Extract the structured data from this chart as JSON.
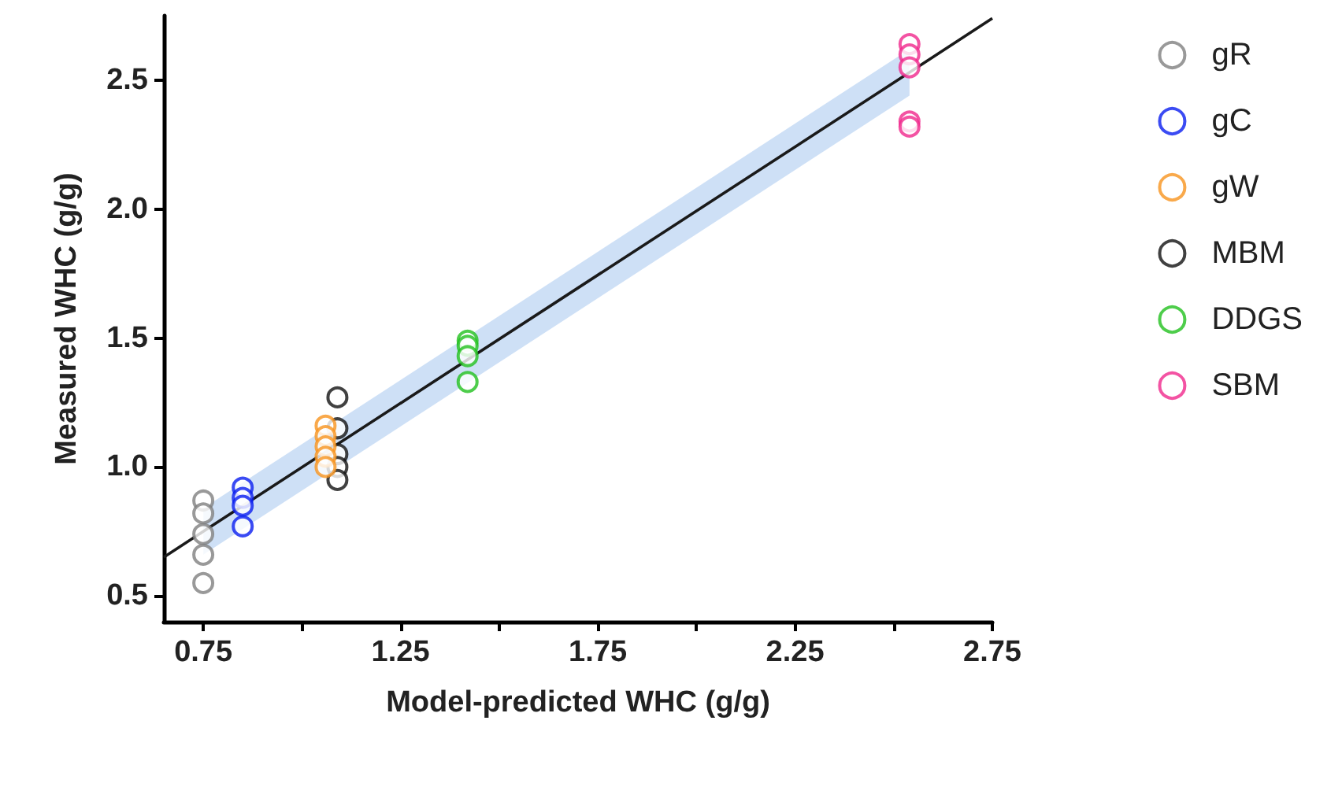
{
  "chart_data": {
    "type": "scatter",
    "xlabel": "Model-predicted WHC (g/g)",
    "ylabel": "Measured WHC (g/g)",
    "marker": "circle",
    "legend": "right",
    "grid": false,
    "xlim": [
      0.65,
      2.75
    ],
    "xticks": [
      0.75,
      {
        "value": 1.0,
        "label": null
      },
      1.25,
      {
        "value": 1.5,
        "label": null
      },
      1.75,
      {
        "value": 2.0,
        "label": null
      },
      2.25,
      {
        "value": 2.5,
        "label": null
      },
      2.75
    ],
    "ylim": [
      0.4,
      2.75
    ],
    "yticks": [
      0.5,
      {
        "value": 1,
        "label": "1.0"
      },
      1.5,
      {
        "value": 2,
        "label": "2.0"
      },
      2.5
    ],
    "series": [
      {
        "name": "gR",
        "color": "#7f7f7f",
        "x": [
          0.75,
          0.75,
          0.75,
          0.75,
          0.75
        ],
        "values": [
          0.87,
          0.82,
          0.74,
          0.66,
          0.55
        ]
      },
      {
        "name": "gC",
        "color": "#0a1ef0",
        "x": [
          0.85,
          0.85,
          0.85,
          0.85
        ],
        "values": [
          0.92,
          0.88,
          0.85,
          0.77
        ]
      },
      {
        "name": "gW",
        "color": "#f7931e",
        "x": [
          1.06,
          1.06,
          1.06,
          1.06,
          1.06
        ],
        "values": [
          1.16,
          1.12,
          1.08,
          1.04,
          1.0
        ]
      },
      {
        "name": "MBM",
        "color": "#111111",
        "x": [
          1.09,
          1.09,
          1.09,
          1.09,
          1.09
        ],
        "values": [
          1.27,
          1.15,
          1.05,
          1.0,
          0.95
        ]
      },
      {
        "name": "DDGS",
        "color": "#22c01e",
        "x": [
          1.42,
          1.42,
          1.42,
          1.42
        ],
        "values": [
          1.49,
          1.47,
          1.43,
          1.33
        ]
      },
      {
        "name": "SBM",
        "color": "#f0288c",
        "x": [
          2.54,
          2.54,
          2.54,
          2.54,
          2.54
        ],
        "values": [
          2.64,
          2.6,
          2.55,
          2.34,
          2.32
        ]
      },
      {
        "type": "line",
        "color": "#1a1a1a",
        "x": [
          0.65,
          0.75,
          2.54,
          2.75
        ],
        "values": [
          0.65,
          0.75,
          2.53,
          2.74
        ],
        "lower": [
          null,
          0.66,
          2.44,
          null
        ],
        "upper": [
          null,
          0.84,
          2.62,
          null
        ],
        "marker": "none"
      }
    ]
  }
}
